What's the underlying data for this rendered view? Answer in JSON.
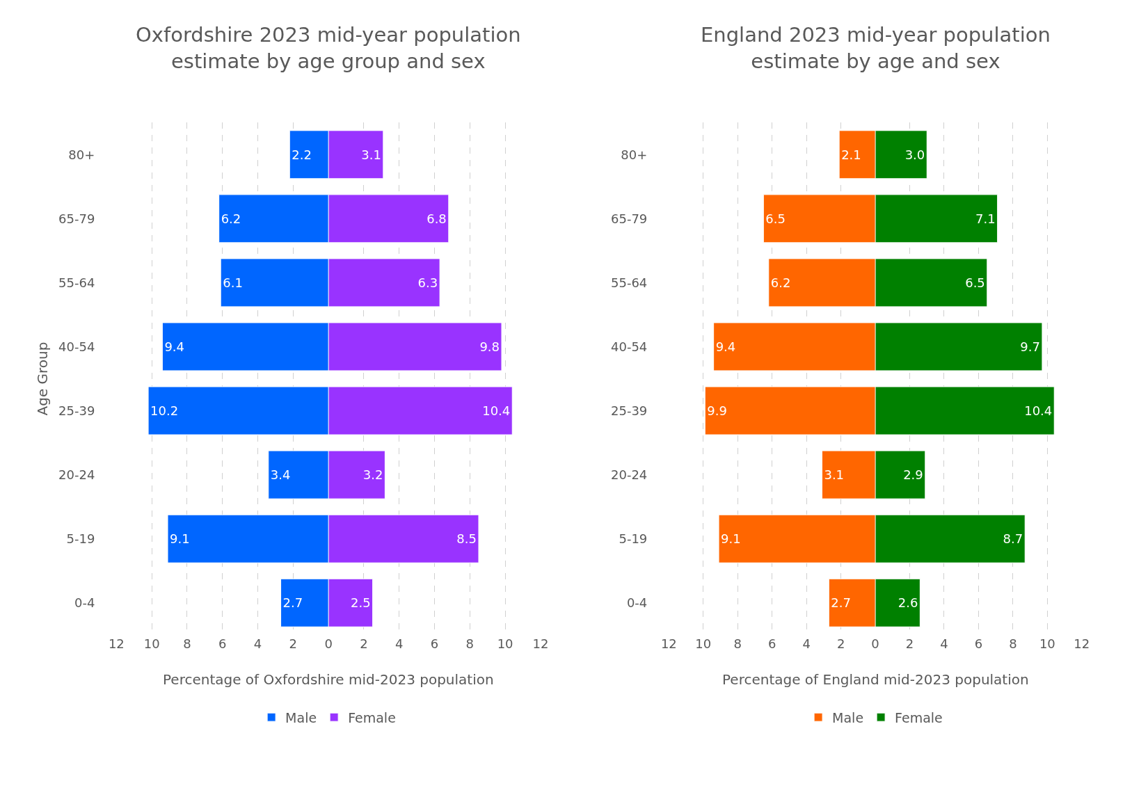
{
  "chart_data": [
    {
      "type": "bar",
      "orientation": "horizontal",
      "title": "Oxfordshire 2023 mid-year population estimate by age group and sex",
      "xlabel": "Percentage of Oxfordshire mid-2023 population",
      "ylabel": "Age Group",
      "categories": [
        "80+",
        "65-79",
        "55-64",
        "40-54",
        "25-39",
        "20-24",
        "5-19",
        "0-4"
      ],
      "series": [
        {
          "name": "Male",
          "color": "#0066ff",
          "values": [
            2.2,
            6.2,
            6.1,
            9.4,
            10.2,
            3.4,
            9.1,
            2.7
          ],
          "value_labels": [
            "2.2",
            "6.2",
            "6.1",
            "9.4",
            "10.2",
            "3.4",
            "9.1",
            "2.7"
          ]
        }
      ],
      "xlim": [
        12,
        0
      ],
      "xticks": [
        12,
        10,
        8,
        6,
        4,
        2
      ],
      "grid": "x",
      "legend": "bottom"
    },
    {
      "type": "bar",
      "orientation": "horizontal",
      "tick_labels": "x",
      "categories": [
        "80+",
        "65-79",
        "55-64",
        "40-54",
        "25-39",
        "20-24",
        "5-19",
        "0-4"
      ],
      "series": [
        {
          "name": "Female",
          "color": "#9933ff",
          "values": [
            3.1,
            6.8,
            6.3,
            9.8,
            10.4,
            3.2,
            8.5,
            2.5
          ],
          "value_labels": [
            "3.1",
            "6.8",
            "6.3",
            "9.8",
            "10.4",
            "3.2",
            "8.5",
            "2.5"
          ]
        }
      ],
      "xlim": [
        0,
        12
      ],
      "xticks": [
        0,
        2,
        4,
        6,
        8,
        10,
        12
      ],
      "grid": "x",
      "legend": "bottom"
    },
    {
      "type": "bar",
      "orientation": "horizontal",
      "title": "England 2023 mid-year population estimate by age and sex",
      "xlabel": "Percentage of England mid-2023 population",
      "categories": [
        "80+",
        "65-79",
        "55-64",
        "40-54",
        "25-39",
        "20-24",
        "5-19",
        "0-4"
      ],
      "series": [
        {
          "name": "Male",
          "color": "#ff6600",
          "values": [
            2.1,
            6.5,
            6.2,
            9.4,
            9.9,
            3.1,
            9.1,
            2.7
          ],
          "value_labels": [
            "2.1",
            "6.5",
            "6.2",
            "9.4",
            "9.9",
            "3.1",
            "9.1",
            "2.7"
          ]
        }
      ],
      "xlim": [
        12,
        0
      ],
      "xticks": [
        12,
        10,
        8,
        6,
        4,
        2
      ],
      "grid": "x",
      "legend": "bottom"
    },
    {
      "type": "bar",
      "orientation": "horizontal",
      "tick_labels": "x",
      "categories": [
        "80+",
        "65-79",
        "55-64",
        "40-54",
        "25-39",
        "20-24",
        "5-19",
        "0-4"
      ],
      "series": [
        {
          "name": "Female",
          "color": "#008000",
          "values": [
            3.0,
            7.1,
            6.5,
            9.7,
            10.4,
            2.9,
            8.7,
            2.6
          ],
          "value_labels": [
            "3.0",
            "7.1",
            "6.5",
            "9.7",
            "10.4",
            "2.9",
            "8.7",
            "2.6"
          ]
        }
      ],
      "xlim": [
        0,
        12
      ],
      "xticks": [
        0,
        2,
        4,
        6,
        8,
        10,
        12
      ],
      "grid": "x",
      "legend": "bottom"
    }
  ]
}
